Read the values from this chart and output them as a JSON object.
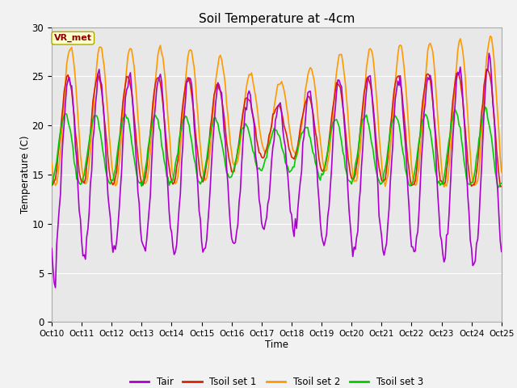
{
  "title": "Soil Temperature at -4cm",
  "xlabel": "Time",
  "ylabel": "Temperature (C)",
  "ylim": [
    0,
    30
  ],
  "xlim_hours": [
    0,
    360
  ],
  "background_color": "#f2f2f2",
  "plot_bg_color": "#e8e8e8",
  "colors": {
    "Tair": "#aa00cc",
    "Tsoil_set1": "#dd2200",
    "Tsoil_set2": "#ff9900",
    "Tsoil_set3": "#00cc00"
  },
  "legend_labels": [
    "Tair",
    "Tsoil set 1",
    "Tsoil set 2",
    "Tsoil set 3"
  ],
  "vr_met_label": "VR_met",
  "vr_met_bg": "#ffffcc",
  "vr_met_text_color": "#8b0000",
  "tick_labels": [
    "Oct 10",
    "Oct 11",
    "Oct 12",
    "Oct 13",
    "Oct 14",
    "Oct 15",
    "Oct 16",
    "Oct 17",
    "Oct 18",
    "Oct 19",
    "Oct 20",
    "Oct 21",
    "Oct 22",
    "Oct 23",
    "Oct 24",
    "Oct 25"
  ],
  "yticks": [
    0,
    5,
    10,
    15,
    20,
    25,
    30
  ],
  "period_hours": 24,
  "n_points": 361,
  "tair_base": 16.0,
  "tair_amp_early": 8.5,
  "tair_amp_mid": 11.0,
  "tair_amp_late": 8.0,
  "tsoil1_base": 19.5,
  "tsoil1_amp": 5.5,
  "tsoil2_base": 21.0,
  "tsoil2_amp": 7.5,
  "tsoil3_base": 17.5,
  "tsoil3_amp": 3.5,
  "figsize": [
    6.4,
    4.8
  ],
  "dpi": 100
}
